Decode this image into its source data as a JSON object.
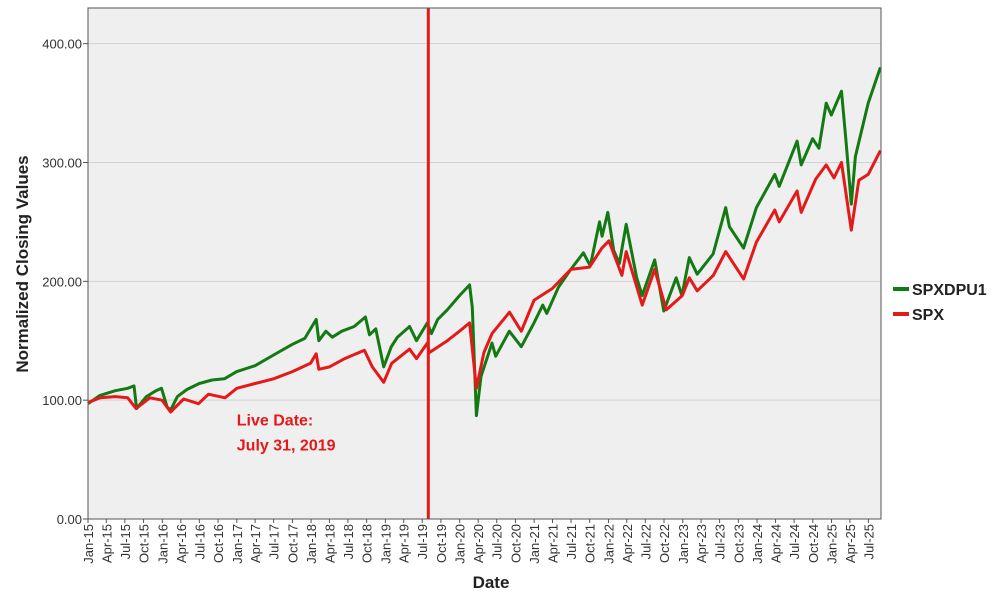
{
  "chart_data": {
    "type": "line",
    "xlabel": "Date",
    "ylabel": "Normalized Closing Values",
    "ylim": [
      0,
      430
    ],
    "yticks": [
      0,
      100,
      200,
      300,
      400
    ],
    "ytick_labels": [
      "0.00",
      "100.00",
      "200.00",
      "300.00",
      "400.00"
    ],
    "xlim": [
      "2015-01-01",
      "2025-09-01"
    ],
    "xticks": [
      "2015-01-01",
      "2015-04-01",
      "2015-07-01",
      "2015-10-01",
      "2016-01-01",
      "2016-04-01",
      "2016-07-01",
      "2016-10-01",
      "2017-01-01",
      "2017-04-01",
      "2017-07-01",
      "2017-10-01",
      "2018-01-01",
      "2018-04-01",
      "2018-07-01",
      "2018-10-01",
      "2019-01-01",
      "2019-04-01",
      "2019-07-01",
      "2019-10-01",
      "2020-01-01",
      "2020-04-01",
      "2020-07-01",
      "2020-10-01",
      "2021-01-01",
      "2021-04-01",
      "2021-07-01",
      "2021-10-01",
      "2022-01-01",
      "2022-04-01",
      "2022-07-01",
      "2022-10-01",
      "2023-01-01",
      "2023-04-01",
      "2023-07-01",
      "2023-10-01",
      "2024-01-01",
      "2024-04-01",
      "2024-07-01",
      "2024-10-01",
      "2025-01-01",
      "2025-04-01",
      "2025-07-01"
    ],
    "xtick_labels": [
      "Jan-15",
      "Apr-15",
      "Jul-15",
      "Oct-15",
      "Jan-16",
      "Apr-16",
      "Jul-16",
      "Oct-16",
      "Jan-17",
      "Apr-17",
      "Jul-17",
      "Oct-17",
      "Jan-18",
      "Apr-18",
      "Jul-18",
      "Oct-18",
      "Jan-19",
      "Apr-19",
      "Jul-19",
      "Oct-19",
      "Jan-20",
      "Apr-20",
      "Jul-20",
      "Oct-20",
      "Jan-21",
      "Apr-21",
      "Jul-21",
      "Oct-21",
      "Jan-22",
      "Apr-22",
      "Jul-22",
      "Oct-22",
      "Jan-23",
      "Apr-23",
      "Jul-23",
      "Oct-23",
      "Jan-24",
      "Apr-24",
      "Jul-24",
      "Oct-24",
      "Jan-25",
      "Apr-25",
      "Jul-25"
    ],
    "grid": "horizontal",
    "legend_position": "right",
    "plot_background": "#efefef",
    "marker_line": {
      "date": "2019-07-31",
      "color": "#e41a1a"
    },
    "annotation": {
      "lines": [
        "Live Date:",
        "July 31, 2019"
      ],
      "color": "#e41a1a",
      "date": "2017-01-01",
      "value": 60
    },
    "series": [
      {
        "name": "SPXDPU1",
        "color": "#137a13",
        "points": [
          [
            "2015-01-01",
            97
          ],
          [
            "2015-03-01",
            104
          ],
          [
            "2015-05-15",
            108
          ],
          [
            "2015-07-15",
            110
          ],
          [
            "2015-08-15",
            112
          ],
          [
            "2015-08-28",
            93
          ],
          [
            "2015-10-15",
            103
          ],
          [
            "2015-12-01",
            108
          ],
          [
            "2015-12-28",
            110
          ],
          [
            "2016-01-25",
            94
          ],
          [
            "2016-02-12",
            92
          ],
          [
            "2016-03-15",
            103
          ],
          [
            "2016-05-01",
            109
          ],
          [
            "2016-07-01",
            114
          ],
          [
            "2016-09-01",
            117
          ],
          [
            "2016-11-01",
            118
          ],
          [
            "2017-01-01",
            124
          ],
          [
            "2017-04-01",
            129
          ],
          [
            "2017-07-01",
            138
          ],
          [
            "2017-10-01",
            147
          ],
          [
            "2017-12-01",
            152
          ],
          [
            "2018-01-26",
            168
          ],
          [
            "2018-02-08",
            150
          ],
          [
            "2018-03-15",
            158
          ],
          [
            "2018-04-15",
            153
          ],
          [
            "2018-06-01",
            158
          ],
          [
            "2018-08-01",
            162
          ],
          [
            "2018-09-25",
            170
          ],
          [
            "2018-10-15",
            155
          ],
          [
            "2018-11-15",
            160
          ],
          [
            "2018-12-24",
            128
          ],
          [
            "2019-01-30",
            145
          ],
          [
            "2019-03-01",
            153
          ],
          [
            "2019-04-30",
            162
          ],
          [
            "2019-06-03",
            150
          ],
          [
            "2019-07-26",
            165
          ],
          [
            "2019-08-15",
            156
          ],
          [
            "2019-09-15",
            168
          ],
          [
            "2019-11-01",
            176
          ],
          [
            "2019-12-31",
            188
          ],
          [
            "2020-02-19",
            197
          ],
          [
            "2020-03-03",
            178
          ],
          [
            "2020-03-23",
            87
          ],
          [
            "2020-04-15",
            120
          ],
          [
            "2020-06-08",
            148
          ],
          [
            "2020-06-26",
            137
          ],
          [
            "2020-09-01",
            158
          ],
          [
            "2020-10-30",
            145
          ],
          [
            "2020-12-31",
            165
          ],
          [
            "2021-02-12",
            180
          ],
          [
            "2021-03-04",
            173
          ],
          [
            "2021-04-30",
            195
          ],
          [
            "2021-06-30",
            210
          ],
          [
            "2021-08-31",
            224
          ],
          [
            "2021-10-04",
            213
          ],
          [
            "2021-11-18",
            250
          ],
          [
            "2021-12-01",
            238
          ],
          [
            "2021-12-29",
            258
          ],
          [
            "2022-01-27",
            226
          ],
          [
            "2022-02-24",
            215
          ],
          [
            "2022-03-29",
            248
          ],
          [
            "2022-05-20",
            203
          ],
          [
            "2022-06-16",
            188
          ],
          [
            "2022-08-16",
            218
          ],
          [
            "2022-09-30",
            175
          ],
          [
            "2022-11-30",
            203
          ],
          [
            "2022-12-28",
            188
          ],
          [
            "2023-02-02",
            220
          ],
          [
            "2023-03-13",
            206
          ],
          [
            "2023-05-30",
            223
          ],
          [
            "2023-07-31",
            262
          ],
          [
            "2023-08-18",
            246
          ],
          [
            "2023-10-27",
            228
          ],
          [
            "2023-12-29",
            262
          ],
          [
            "2024-03-28",
            290
          ],
          [
            "2024-04-19",
            280
          ],
          [
            "2024-07-16",
            318
          ],
          [
            "2024-08-05",
            298
          ],
          [
            "2024-09-30",
            320
          ],
          [
            "2024-10-31",
            312
          ],
          [
            "2024-12-06",
            350
          ],
          [
            "2024-12-31",
            340
          ],
          [
            "2025-02-19",
            360
          ],
          [
            "2025-03-13",
            318
          ],
          [
            "2025-04-08",
            265
          ],
          [
            "2025-04-28",
            305
          ],
          [
            "2025-06-30",
            350
          ],
          [
            "2025-08-29",
            380
          ]
        ]
      },
      {
        "name": "SPX",
        "color": "#e41a1a",
        "points": [
          [
            "2015-01-01",
            98
          ],
          [
            "2015-03-01",
            102
          ],
          [
            "2015-05-15",
            103
          ],
          [
            "2015-07-15",
            102
          ],
          [
            "2015-08-25",
            93
          ],
          [
            "2015-11-01",
            102
          ],
          [
            "2015-12-31",
            100
          ],
          [
            "2016-02-11",
            90
          ],
          [
            "2016-04-15",
            101
          ],
          [
            "2016-06-27",
            97
          ],
          [
            "2016-08-15",
            105
          ],
          [
            "2016-11-04",
            102
          ],
          [
            "2017-01-01",
            110
          ],
          [
            "2017-04-01",
            114
          ],
          [
            "2017-07-01",
            118
          ],
          [
            "2017-10-01",
            124
          ],
          [
            "2017-12-29",
            131
          ],
          [
            "2018-01-26",
            139
          ],
          [
            "2018-02-08",
            126
          ],
          [
            "2018-04-01",
            128
          ],
          [
            "2018-06-15",
            135
          ],
          [
            "2018-09-20",
            142
          ],
          [
            "2018-10-29",
            128
          ],
          [
            "2018-12-24",
            115
          ],
          [
            "2019-02-01",
            131
          ],
          [
            "2019-04-30",
            143
          ],
          [
            "2019-06-03",
            135
          ],
          [
            "2019-07-26",
            148
          ],
          [
            "2019-08-05",
            140
          ],
          [
            "2019-11-01",
            150
          ],
          [
            "2019-12-31",
            158
          ],
          [
            "2020-02-19",
            165
          ],
          [
            "2020-03-23",
            110
          ],
          [
            "2020-04-29",
            140
          ],
          [
            "2020-06-08",
            156
          ],
          [
            "2020-09-02",
            174
          ],
          [
            "2020-10-30",
            158
          ],
          [
            "2020-12-31",
            184
          ],
          [
            "2021-03-31",
            194
          ],
          [
            "2021-06-30",
            210
          ],
          [
            "2021-09-30",
            212
          ],
          [
            "2021-11-30",
            228
          ],
          [
            "2022-01-03",
            234
          ],
          [
            "2022-03-08",
            205
          ],
          [
            "2022-03-29",
            225
          ],
          [
            "2022-06-16",
            180
          ],
          [
            "2022-08-16",
            210
          ],
          [
            "2022-10-12",
            176
          ],
          [
            "2022-12-30",
            188
          ],
          [
            "2023-02-02",
            203
          ],
          [
            "2023-03-13",
            192
          ],
          [
            "2023-05-31",
            205
          ],
          [
            "2023-07-31",
            225
          ],
          [
            "2023-10-27",
            202
          ],
          [
            "2023-12-29",
            233
          ],
          [
            "2024-03-28",
            260
          ],
          [
            "2024-04-19",
            250
          ],
          [
            "2024-07-16",
            276
          ],
          [
            "2024-08-05",
            258
          ],
          [
            "2024-10-15",
            286
          ],
          [
            "2024-12-06",
            298
          ],
          [
            "2025-01-13",
            287
          ],
          [
            "2025-02-19",
            300
          ],
          [
            "2025-04-08",
            243
          ],
          [
            "2025-05-15",
            285
          ],
          [
            "2025-06-30",
            290
          ],
          [
            "2025-08-29",
            310
          ]
        ]
      }
    ]
  }
}
